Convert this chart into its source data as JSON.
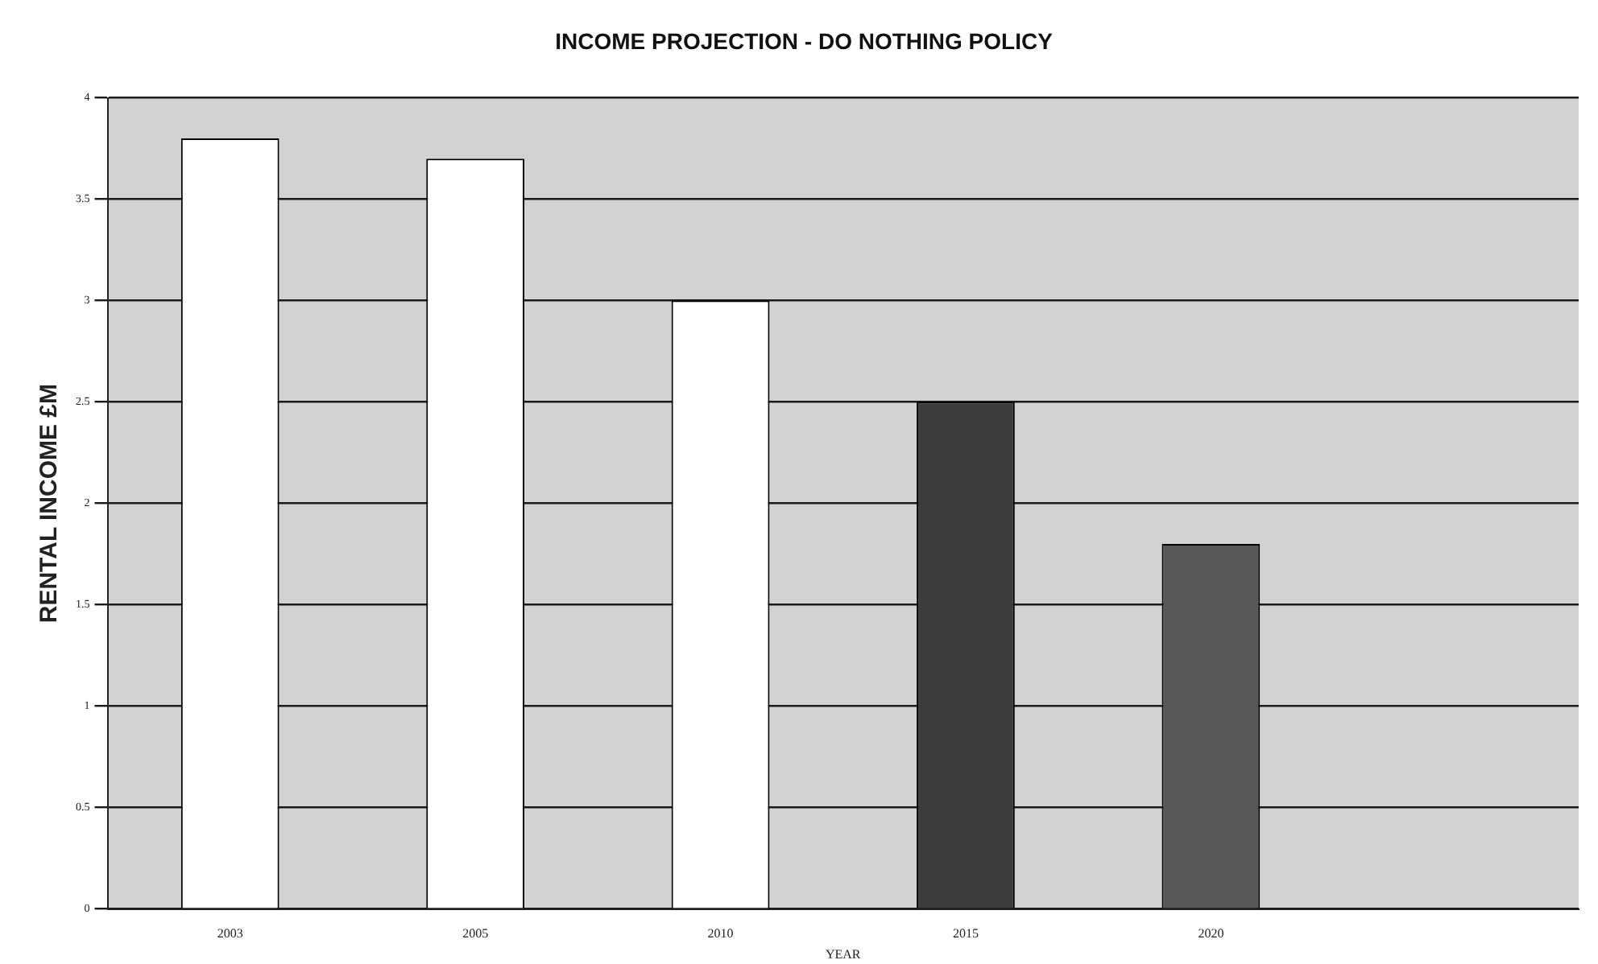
{
  "chart_data": {
    "type": "bar",
    "title": "INCOME PROJECTION - DO NOTHING POLICY",
    "xlabel": "YEAR",
    "ylabel": "RENTAL INCOME £M",
    "categories": [
      "2003",
      "2005",
      "2010",
      "2015",
      "2020",
      null
    ],
    "values": [
      3.8,
      3.7,
      3.0,
      2.5,
      1.8,
      null
    ],
    "colors": [
      "#ffffff",
      "#ffffff",
      "#ffffff",
      "#3c3c3c",
      "#585858",
      "#ffffff"
    ],
    "ylim": [
      0,
      4
    ],
    "yticks": [
      0,
      0.5,
      1,
      1.5,
      2,
      2.5,
      3,
      3.5,
      4
    ],
    "grid": "y",
    "legend": false
  }
}
